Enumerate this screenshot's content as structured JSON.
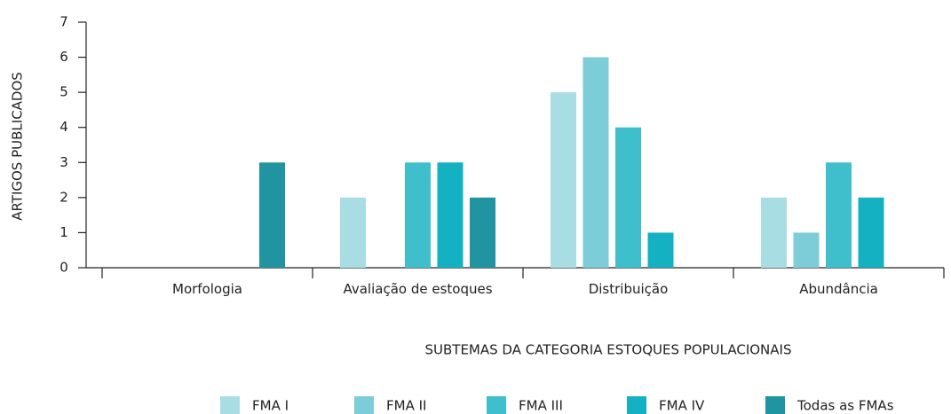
{
  "chart_data": {
    "type": "bar",
    "x_label": "SUBTEMAS DA CATEGORIA ESTOQUES POPULACIONAIS",
    "y_label": "ARTIGOS PUBLICADOS",
    "categories": [
      "Morfologia",
      "Avaliação de estoques",
      "Distribuição",
      "Abundância"
    ],
    "series": [
      {
        "name": "FMA I",
        "color": "#a8dde3",
        "values": [
          0,
          2,
          5,
          2
        ]
      },
      {
        "name": "FMA II",
        "color": "#7ccdd8",
        "values": [
          0,
          0,
          6,
          1
        ]
      },
      {
        "name": "FMA III",
        "color": "#3fbfcc",
        "values": [
          0,
          3,
          4,
          3
        ]
      },
      {
        "name": "FMA IV",
        "color": "#13b1c2",
        "values": [
          0,
          3,
          1,
          2
        ]
      },
      {
        "name": "Todas as FMAs",
        "color": "#2194a2",
        "values": [
          3,
          2,
          0,
          0
        ]
      }
    ],
    "ylim": [
      0,
      7
    ],
    "yticks": [
      0,
      1,
      2,
      3,
      4,
      5,
      6,
      7
    ],
    "legend": "bottom"
  }
}
